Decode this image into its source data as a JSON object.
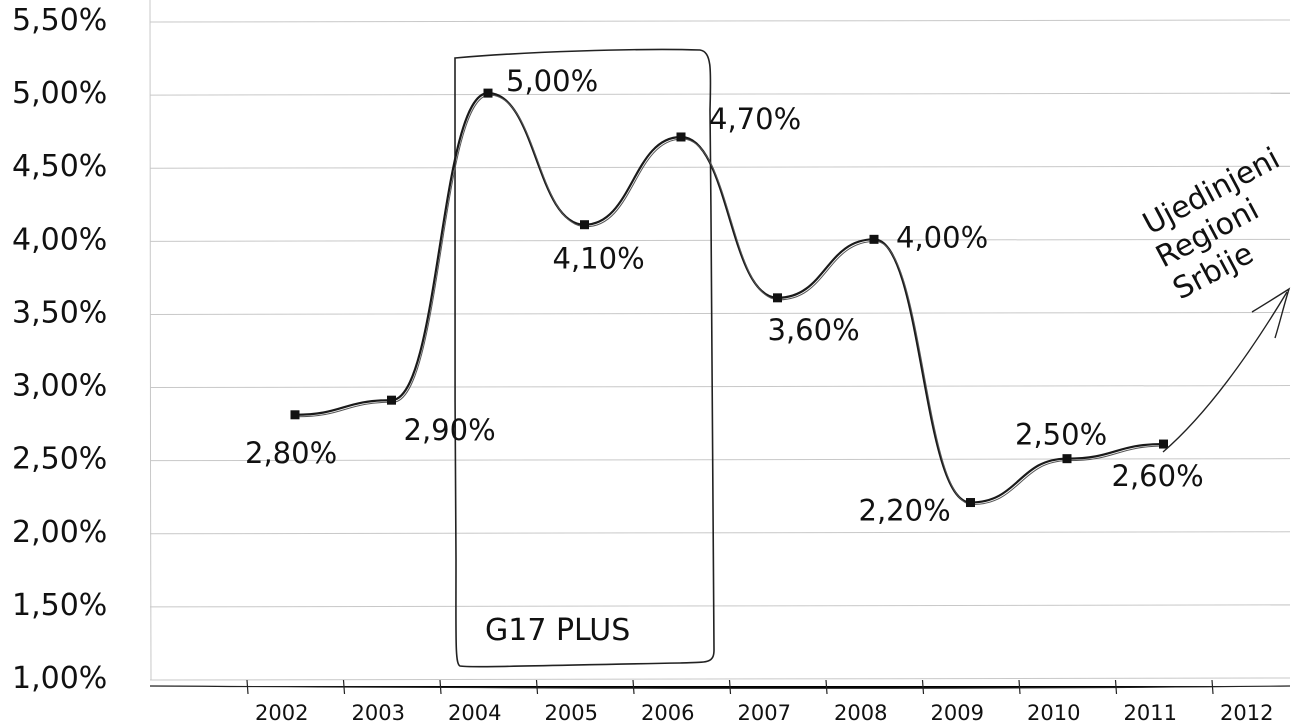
{
  "chart_data": {
    "type": "line",
    "x": [
      "2002",
      "2003",
      "2004",
      "2005",
      "2006",
      "2007",
      "2008",
      "2009",
      "2010",
      "2011"
    ],
    "x_ticks": [
      "2002",
      "2003",
      "2004",
      "2005",
      "2006",
      "2007",
      "2008",
      "2009",
      "2010",
      "2011",
      "2012"
    ],
    "series": [
      {
        "values": [
          2.8,
          2.9,
          5.0,
          4.1,
          4.7,
          3.6,
          4.0,
          2.2,
          2.5,
          2.6
        ],
        "labels": [
          "2,80%",
          "2,90%",
          "5,00%",
          "4,10%",
          "4,70%",
          "3,60%",
          "4,00%",
          "2,20%",
          "2,50%",
          "2,60%"
        ]
      }
    ],
    "y_ticks": [
      "1,00%",
      "1,50%",
      "2,00%",
      "2,50%",
      "3,00%",
      "3,50%",
      "4,00%",
      "4,50%",
      "5,00%",
      "5,50%"
    ],
    "ylim": [
      1.0,
      5.5
    ],
    "grid": true,
    "title": "",
    "xlabel": "",
    "ylabel": "",
    "annotations": {
      "highlight_box_label": "G17 PLUS",
      "highlight_box_range": [
        "2004",
        "2006"
      ],
      "arrow_note": [
        "Ujedinjeni",
        "Regioni",
        "Srbije"
      ]
    }
  }
}
